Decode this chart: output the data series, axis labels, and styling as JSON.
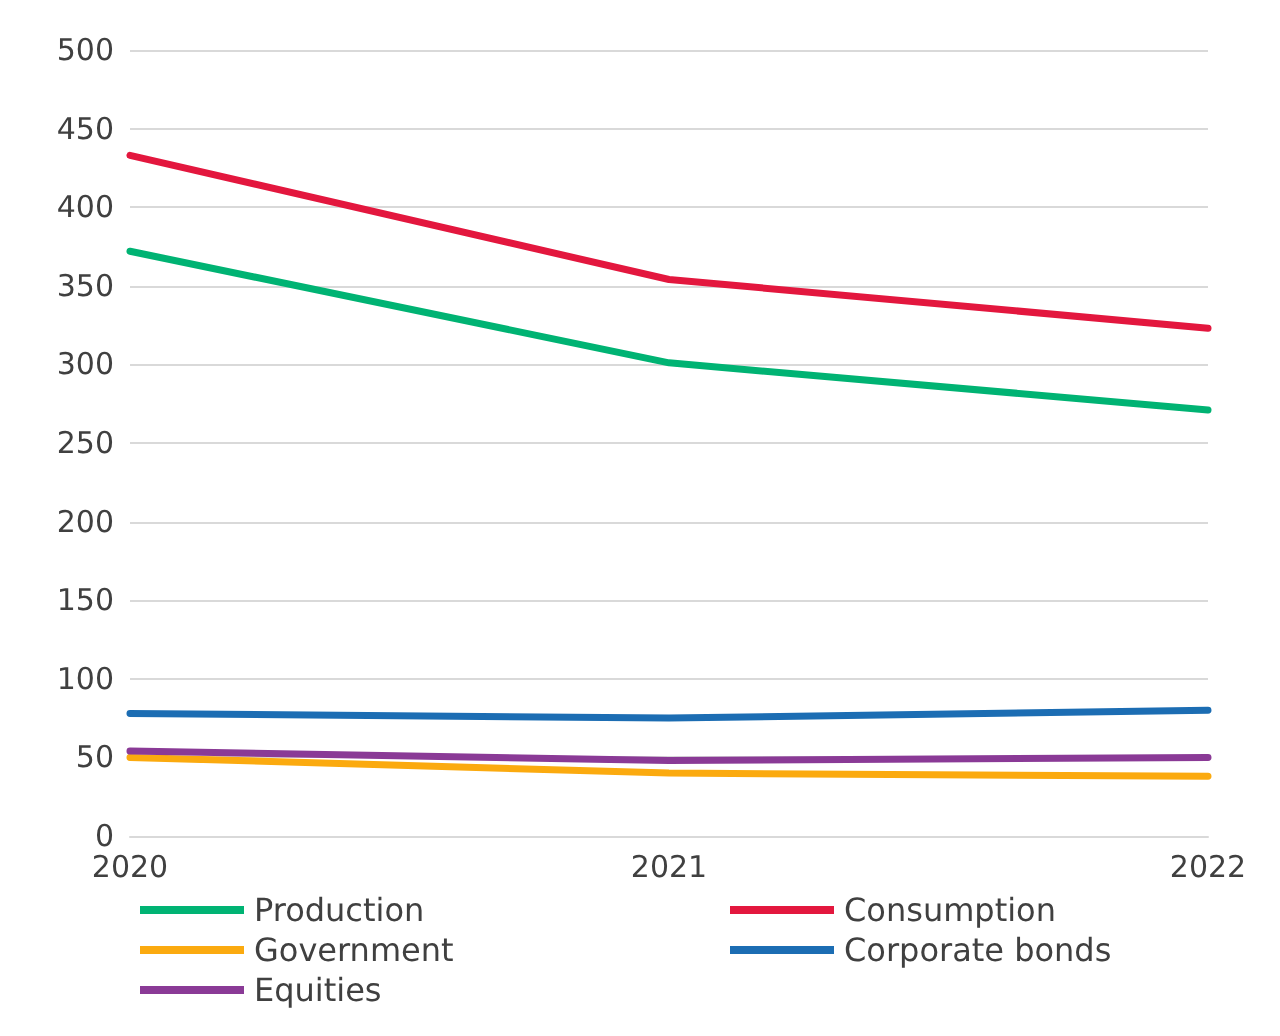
{
  "chart_data": {
    "type": "line",
    "x": [
      2020,
      2021,
      2022
    ],
    "xlim": [
      2020,
      2022
    ],
    "xticks": [
      2020,
      2021,
      2022
    ],
    "ylim": [
      0,
      500
    ],
    "yticks": [
      0,
      50,
      100,
      150,
      200,
      250,
      300,
      350,
      400,
      450,
      500
    ],
    "grid": "y",
    "legend": "bottom",
    "marker": "none",
    "line_style": "solid",
    "series": [
      {
        "name": "Production",
        "color": "#00b373",
        "values": [
          372,
          301,
          271
        ]
      },
      {
        "name": "Consumption",
        "color": "#e3173e",
        "values": [
          433,
          354,
          323
        ]
      },
      {
        "name": "Government",
        "color": "#fbaa0f",
        "values": [
          50,
          40,
          38
        ]
      },
      {
        "name": "Corporate bonds",
        "color": "#1c6db3",
        "values": [
          78,
          75,
          80
        ]
      },
      {
        "name": "Equities",
        "color": "#8a3a96",
        "values": [
          54,
          48,
          50
        ]
      }
    ]
  }
}
